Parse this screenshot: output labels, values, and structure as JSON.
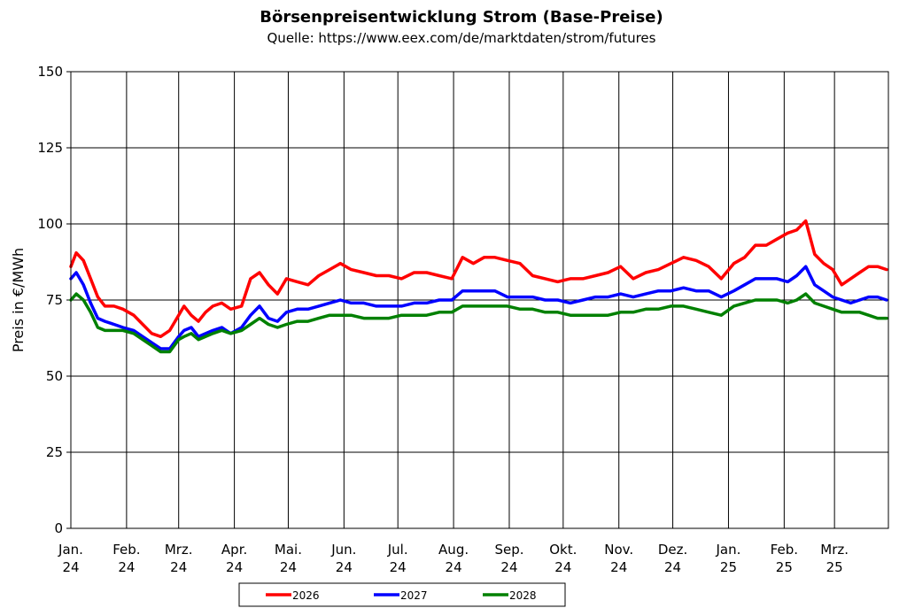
{
  "chart_data": {
    "type": "line",
    "title": "Börsenpreisentwicklung Strom (Base-Preise)",
    "subtitle": "Quelle:  https://www.eex.com/de/marktdaten/strom/futures",
    "xlabel": "",
    "ylabel": "Preis in €/MWh",
    "ylim": [
      0,
      150
    ],
    "yticks": [
      "0",
      "25",
      "50",
      "75",
      "100",
      "125",
      "150"
    ],
    "xlim": [
      "2024-01-01",
      "2025-03-31"
    ],
    "x_tick_dates": [
      "2024-01-01",
      "2024-02-01",
      "2024-03-01",
      "2024-04-01",
      "2024-05-01",
      "2024-06-01",
      "2024-07-01",
      "2024-08-01",
      "2024-09-01",
      "2024-10-01",
      "2024-11-01",
      "2024-12-01",
      "2025-01-01",
      "2025-02-01",
      "2025-03-01"
    ],
    "x_tick_labels": [
      [
        "Jan.",
        "24"
      ],
      [
        "Feb.",
        "24"
      ],
      [
        "Mrz.",
        "24"
      ],
      [
        "Apr.",
        "24"
      ],
      [
        "Mai.",
        "24"
      ],
      [
        "Jun.",
        "24"
      ],
      [
        "Jul.",
        "24"
      ],
      [
        "Aug.",
        "24"
      ],
      [
        "Sep.",
        "24"
      ],
      [
        "Okt.",
        "24"
      ],
      [
        "Nov.",
        "24"
      ],
      [
        "Dez.",
        "24"
      ],
      [
        "Jan.",
        "25"
      ],
      [
        "Feb.",
        "25"
      ],
      [
        "Mrz.",
        "25"
      ]
    ],
    "grid": true,
    "legend_position": "bottom",
    "series": [
      {
        "name": "2026",
        "color": "#ff0000",
        "x": [
          "2024-01-01",
          "2024-01-04",
          "2024-01-08",
          "2024-01-12",
          "2024-01-16",
          "2024-01-20",
          "2024-01-25",
          "2024-01-30",
          "2024-02-05",
          "2024-02-10",
          "2024-02-15",
          "2024-02-20",
          "2024-02-25",
          "2024-03-01",
          "2024-03-04",
          "2024-03-08",
          "2024-03-12",
          "2024-03-16",
          "2024-03-20",
          "2024-03-25",
          "2024-03-30",
          "2024-04-05",
          "2024-04-10",
          "2024-04-15",
          "2024-04-20",
          "2024-04-25",
          "2024-04-30",
          "2024-05-06",
          "2024-05-12",
          "2024-05-18",
          "2024-05-24",
          "2024-05-30",
          "2024-06-05",
          "2024-06-12",
          "2024-06-19",
          "2024-06-26",
          "2024-07-03",
          "2024-07-10",
          "2024-07-17",
          "2024-07-24",
          "2024-07-31",
          "2024-08-06",
          "2024-08-12",
          "2024-08-18",
          "2024-08-24",
          "2024-08-31",
          "2024-09-07",
          "2024-09-14",
          "2024-09-21",
          "2024-09-28",
          "2024-10-05",
          "2024-10-12",
          "2024-10-19",
          "2024-10-26",
          "2024-11-02",
          "2024-11-09",
          "2024-11-16",
          "2024-11-23",
          "2024-11-30",
          "2024-12-07",
          "2024-12-14",
          "2024-12-21",
          "2024-12-28",
          "2025-01-04",
          "2025-01-10",
          "2025-01-16",
          "2025-01-22",
          "2025-01-28",
          "2025-02-03",
          "2025-02-08",
          "2025-02-13",
          "2025-02-18",
          "2025-02-23",
          "2025-02-28",
          "2025-03-05",
          "2025-03-10",
          "2025-03-15",
          "2025-03-20",
          "2025-03-25",
          "2025-03-30"
        ],
        "values": [
          86,
          90.5,
          88,
          82,
          76,
          73,
          73,
          72,
          70,
          67,
          64,
          63,
          65,
          70,
          73,
          70,
          68,
          71,
          73,
          74,
          72,
          73,
          82,
          84,
          80,
          77,
          82,
          81,
          80,
          83,
          85,
          87,
          85,
          84,
          83,
          83,
          82,
          84,
          84,
          83,
          82,
          89,
          87,
          89,
          89,
          88,
          87,
          83,
          82,
          81,
          82,
          82,
          83,
          84,
          86,
          82,
          84,
          85,
          87,
          89,
          88,
          86,
          82,
          87,
          89,
          93,
          93,
          95,
          97,
          98,
          101,
          90,
          87,
          85,
          80,
          82,
          84,
          86,
          86,
          85
        ]
      },
      {
        "name": "2027",
        "color": "#0000ff",
        "x": [
          "2024-01-01",
          "2024-01-04",
          "2024-01-08",
          "2024-01-12",
          "2024-01-16",
          "2024-01-20",
          "2024-01-25",
          "2024-01-30",
          "2024-02-05",
          "2024-02-10",
          "2024-02-15",
          "2024-02-20",
          "2024-02-25",
          "2024-03-01",
          "2024-03-04",
          "2024-03-08",
          "2024-03-12",
          "2024-03-16",
          "2024-03-20",
          "2024-03-25",
          "2024-03-30",
          "2024-04-05",
          "2024-04-10",
          "2024-04-15",
          "2024-04-20",
          "2024-04-25",
          "2024-04-30",
          "2024-05-06",
          "2024-05-12",
          "2024-05-18",
          "2024-05-24",
          "2024-05-30",
          "2024-06-05",
          "2024-06-12",
          "2024-06-19",
          "2024-06-26",
          "2024-07-03",
          "2024-07-10",
          "2024-07-17",
          "2024-07-24",
          "2024-07-31",
          "2024-08-06",
          "2024-08-12",
          "2024-08-18",
          "2024-08-24",
          "2024-08-31",
          "2024-09-07",
          "2024-09-14",
          "2024-09-21",
          "2024-09-28",
          "2024-10-05",
          "2024-10-12",
          "2024-10-19",
          "2024-10-26",
          "2024-11-02",
          "2024-11-09",
          "2024-11-16",
          "2024-11-23",
          "2024-11-30",
          "2024-12-07",
          "2024-12-14",
          "2024-12-21",
          "2024-12-28",
          "2025-01-04",
          "2025-01-10",
          "2025-01-16",
          "2025-01-22",
          "2025-01-28",
          "2025-02-03",
          "2025-02-08",
          "2025-02-13",
          "2025-02-18",
          "2025-02-23",
          "2025-02-28",
          "2025-03-05",
          "2025-03-10",
          "2025-03-15",
          "2025-03-20",
          "2025-03-25",
          "2025-03-30"
        ],
        "values": [
          82,
          84,
          80,
          74,
          69,
          68,
          67,
          66,
          65,
          63,
          61,
          59,
          59,
          63,
          65,
          66,
          63,
          64,
          65,
          66,
          64,
          66,
          70,
          73,
          69,
          68,
          71,
          72,
          72,
          73,
          74,
          75,
          74,
          74,
          73,
          73,
          73,
          74,
          74,
          75,
          75,
          78,
          78,
          78,
          78,
          76,
          76,
          76,
          75,
          75,
          74,
          75,
          76,
          76,
          77,
          76,
          77,
          78,
          78,
          79,
          78,
          78,
          76,
          78,
          80,
          82,
          82,
          82,
          81,
          83,
          86,
          80,
          78,
          76,
          75,
          74,
          75,
          76,
          76,
          75
        ]
      },
      {
        "name": "2028",
        "color": "#008000",
        "x": [
          "2024-01-01",
          "2024-01-04",
          "2024-01-08",
          "2024-01-12",
          "2024-01-16",
          "2024-01-20",
          "2024-01-25",
          "2024-01-30",
          "2024-02-05",
          "2024-02-10",
          "2024-02-15",
          "2024-02-20",
          "2024-02-25",
          "2024-03-01",
          "2024-03-04",
          "2024-03-08",
          "2024-03-12",
          "2024-03-16",
          "2024-03-20",
          "2024-03-25",
          "2024-03-30",
          "2024-04-05",
          "2024-04-10",
          "2024-04-15",
          "2024-04-20",
          "2024-04-25",
          "2024-04-30",
          "2024-05-06",
          "2024-05-12",
          "2024-05-18",
          "2024-05-24",
          "2024-05-30",
          "2024-06-05",
          "2024-06-12",
          "2024-06-19",
          "2024-06-26",
          "2024-07-03",
          "2024-07-10",
          "2024-07-17",
          "2024-07-24",
          "2024-07-31",
          "2024-08-06",
          "2024-08-12",
          "2024-08-18",
          "2024-08-24",
          "2024-08-31",
          "2024-09-07",
          "2024-09-14",
          "2024-09-21",
          "2024-09-28",
          "2024-10-05",
          "2024-10-12",
          "2024-10-19",
          "2024-10-26",
          "2024-11-02",
          "2024-11-09",
          "2024-11-16",
          "2024-11-23",
          "2024-11-30",
          "2024-12-07",
          "2024-12-14",
          "2024-12-21",
          "2024-12-28",
          "2025-01-04",
          "2025-01-10",
          "2025-01-16",
          "2025-01-22",
          "2025-01-28",
          "2025-02-03",
          "2025-02-08",
          "2025-02-13",
          "2025-02-18",
          "2025-02-23",
          "2025-02-28",
          "2025-03-05",
          "2025-03-10",
          "2025-03-15",
          "2025-03-20",
          "2025-03-25",
          "2025-03-30"
        ],
        "values": [
          75,
          77,
          75,
          71,
          66,
          65,
          65,
          65,
          64,
          62,
          60,
          58,
          58,
          62,
          63,
          64,
          62,
          63,
          64,
          65,
          64,
          65,
          67,
          69,
          67,
          66,
          67,
          68,
          68,
          69,
          70,
          70,
          70,
          69,
          69,
          69,
          70,
          70,
          70,
          71,
          71,
          73,
          73,
          73,
          73,
          73,
          72,
          72,
          71,
          71,
          70,
          70,
          70,
          70,
          71,
          71,
          72,
          72,
          73,
          73,
          72,
          71,
          70,
          73,
          74,
          75,
          75,
          75,
          74,
          75,
          77,
          74,
          73,
          72,
          71,
          71,
          71,
          70,
          69,
          69
        ]
      }
    ]
  }
}
